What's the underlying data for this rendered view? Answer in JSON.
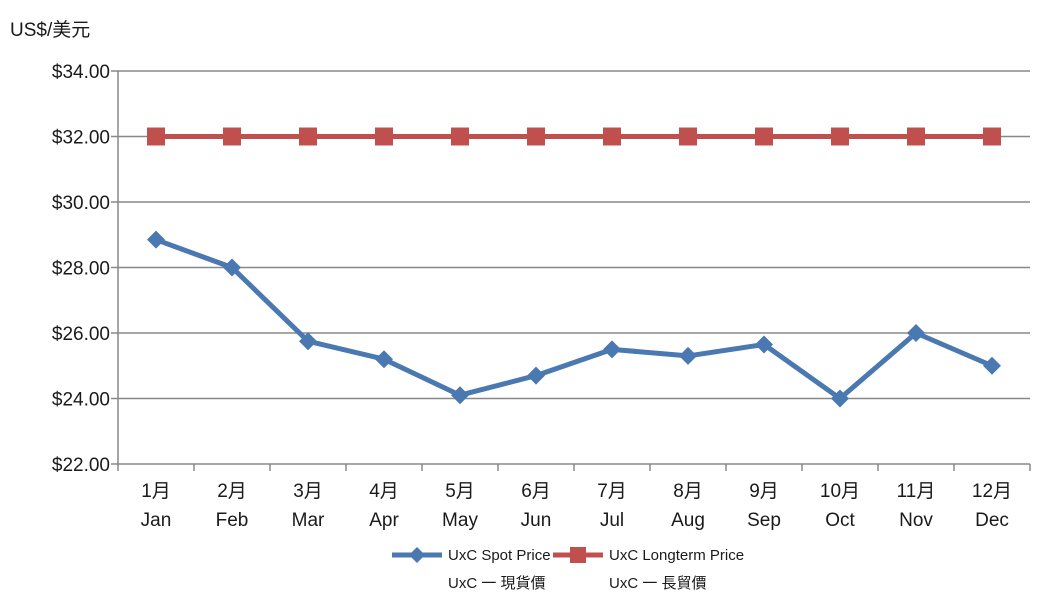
{
  "chart_data": {
    "type": "line",
    "unit_label": "US$/美元",
    "categories": [
      [
        "1月",
        "Jan"
      ],
      [
        "2月",
        "Feb"
      ],
      [
        "3月",
        "Mar"
      ],
      [
        "4月",
        "Apr"
      ],
      [
        "5月",
        "May"
      ],
      [
        "6月",
        "Jun"
      ],
      [
        "7月",
        "Jul"
      ],
      [
        "8月",
        "Aug"
      ],
      [
        "9月",
        "Sep"
      ],
      [
        "10月",
        "Oct"
      ],
      [
        "11月",
        "Nov"
      ],
      [
        "12月",
        "Dec"
      ]
    ],
    "y_ticks": [
      "$22.00",
      "$24.00",
      "$26.00",
      "$28.00",
      "$30.00",
      "$32.00",
      "$34.00"
    ],
    "ylim": [
      22,
      34
    ],
    "grid": true,
    "legend_position": "bottom",
    "series": [
      {
        "name": "UxC Spot Price",
        "name_zh": "UxC 一 現貨價",
        "color": "#4a78b0",
        "marker": "diamond",
        "values": [
          28.85,
          28.0,
          25.75,
          25.2,
          24.1,
          24.7,
          25.5,
          25.3,
          25.65,
          24.0,
          26.0,
          25.0
        ]
      },
      {
        "name": "UxC Longterm Price",
        "name_zh": "UxC 一 長貿價",
        "color": "#c0504d",
        "marker": "square",
        "values": [
          32,
          32,
          32,
          32,
          32,
          32,
          32,
          32,
          32,
          32,
          32,
          32
        ]
      }
    ]
  }
}
